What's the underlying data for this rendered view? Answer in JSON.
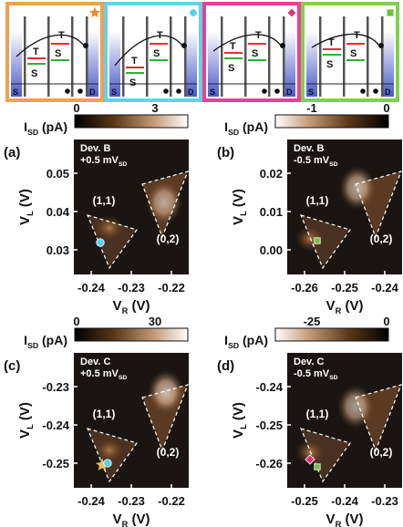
{
  "schematics": [
    {
      "border": "#f0a050",
      "marker_color": "#f08a24",
      "marker": "star",
      "labels": {
        "s_left": "S",
        "s_right": "S",
        "t_left": "T",
        "t_right": "T",
        "source": "S",
        "drain": "D"
      }
    },
    {
      "border": "#66d0e8",
      "marker_color": "#5ad0ee",
      "marker": "circle",
      "labels": {
        "s_left": "S",
        "s_right": "S",
        "t_left": "T",
        "t_right": "T",
        "source": "S",
        "drain": "D"
      }
    },
    {
      "border": "#e8409a",
      "marker_color": "#e0307a",
      "marker": "diamond",
      "labels": {
        "s_left": "S",
        "s_right": "S",
        "t_left": "T",
        "t_right": "T",
        "source": "S",
        "drain": "D"
      }
    },
    {
      "border": "#80d050",
      "marker_color": "#70c040",
      "marker": "square",
      "labels": {
        "s_left": "S",
        "s_right": "S",
        "t_left": "T",
        "t_right": "T",
        "source": "S",
        "drain": "D"
      }
    }
  ],
  "chart_data": [
    {
      "type": "heatmap",
      "panel": "(a)",
      "title_lines": [
        "Dev. B",
        "+0.5 mV"
      ],
      "title_sub": "SD",
      "colorbar": {
        "label": "I",
        "label_sub": "SD",
        "unit": " (pA)",
        "ticks": [
          "0",
          "3"
        ],
        "range": [
          0,
          3.8
        ]
      },
      "xlabel": "V",
      "xlabel_sub": "R",
      "xunit": " (V)",
      "ylabel": "V",
      "ylabel_sub": "L",
      "yunit": " (V)",
      "xticks": [
        "-0.24",
        "-0.23",
        "-0.22"
      ],
      "yticks": [
        "0.05",
        "0.04",
        "0.03"
      ],
      "region_labels": [
        "(1,1)",
        "(0,2)"
      ],
      "marker": "circle"
    },
    {
      "type": "heatmap",
      "panel": "(b)",
      "title_lines": [
        "Dev. B",
        "-0.5 mV"
      ],
      "title_sub": "SD",
      "colorbar": {
        "label": "I",
        "label_sub": "SD",
        "unit": " (pA)",
        "ticks": [
          "-1",
          "0"
        ],
        "range": [
          -1.2,
          0
        ]
      },
      "xlabel": "V",
      "xlabel_sub": "R",
      "xunit": " (V)",
      "ylabel": "V",
      "ylabel_sub": "L",
      "yunit": " (V)",
      "xticks": [
        "-0.26",
        "-0.25",
        "-0.24"
      ],
      "yticks": [
        "0.02",
        "0.01",
        "0.00"
      ],
      "region_labels": [
        "(1,1)",
        "(0,2)"
      ],
      "marker": "square"
    },
    {
      "type": "heatmap",
      "panel": "(c)",
      "title_lines": [
        "Dev. C",
        "+0.5 mV"
      ],
      "title_sub": "SD",
      "colorbar": {
        "label": "I",
        "label_sub": "SD",
        "unit": " (pA)",
        "ticks": [
          "0",
          "30"
        ],
        "range": [
          0,
          38
        ]
      },
      "xlabel": "V",
      "xlabel_sub": "R",
      "xunit": " (V)",
      "ylabel": "V",
      "ylabel_sub": "L",
      "yunit": " (V)",
      "xticks": [
        "-0.24",
        "-0.23",
        "-0.22"
      ],
      "yticks": [
        "-0.23",
        "-0.24",
        "-0.25"
      ],
      "region_labels": [
        "(1,1)",
        "(0,2)"
      ],
      "marker": "circle_star"
    },
    {
      "type": "heatmap",
      "panel": "(d)",
      "title_lines": [
        "Dev. C",
        "-0.5 mV"
      ],
      "title_sub": "SD",
      "colorbar": {
        "label": "I",
        "label_sub": "SD",
        "unit": " (pA)",
        "ticks": [
          "-25",
          "0"
        ],
        "range": [
          -30,
          0
        ]
      },
      "xlabel": "V",
      "xlabel_sub": "R",
      "xunit": " (V)",
      "ylabel": "V",
      "ylabel_sub": "L",
      "yunit": " (V)",
      "xticks": [
        "-0.25",
        "-0.24",
        "-0.23"
      ],
      "yticks": [
        "-0.24",
        "-0.25",
        "-0.26"
      ],
      "region_labels": [
        "(1,1)",
        "(0,2)"
      ],
      "marker": "diamond_square"
    }
  ]
}
